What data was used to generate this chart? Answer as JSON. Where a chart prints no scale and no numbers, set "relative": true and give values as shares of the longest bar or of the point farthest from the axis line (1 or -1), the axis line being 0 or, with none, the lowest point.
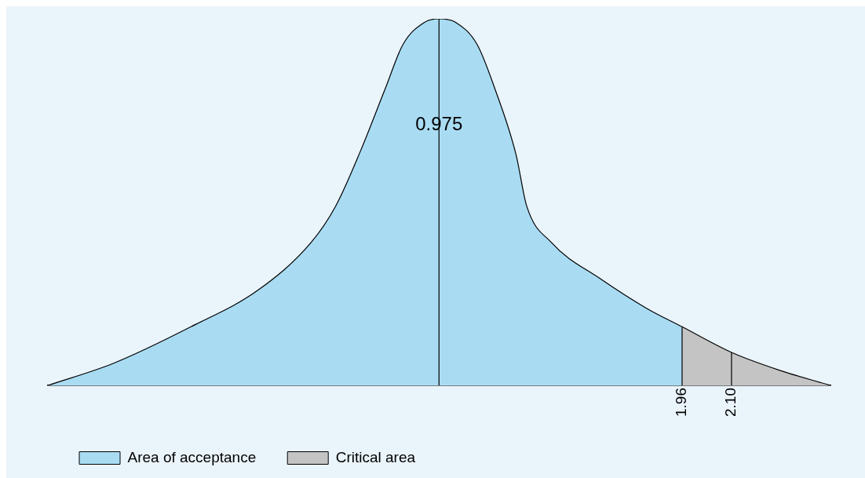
{
  "chart_data": {
    "type": "area",
    "relative": true,
    "xlim": [
      0.165,
      2.38
    ],
    "xticks": [
      1.96,
      {
        "value": 2.1,
        "label": "2.10"
      }
    ],
    "series": [
      {
        "name": "Area of acceptance",
        "color": "#a9dcf3",
        "x": [
          0.165,
          0.35,
          0.57,
          0.76,
          0.91,
          0.98,
          1.05,
          1.12,
          1.17,
          1.23,
          1.272,
          1.32,
          1.38,
          1.43,
          1.49,
          1.52,
          1.59,
          1.73,
          1.86,
          1.96
        ],
        "values": [
          0,
          0.06,
          0.16,
          0.26,
          0.39,
          0.49,
          0.64,
          0.81,
          0.93,
          0.99,
          1,
          0.99,
          0.93,
          0.81,
          0.63,
          0.49,
          0.39,
          0.29,
          0.21,
          0.16
        ]
      },
      {
        "name": "Critical area",
        "color": "#c4c4c4",
        "x": [
          1.96,
          2.1,
          2.24,
          2.38
        ],
        "values": [
          0.16,
          0.09,
          0.04,
          0
        ]
      }
    ],
    "annotations": [
      "0.975"
    ],
    "ref_lines": [
      {
        "axis": "x",
        "value": 1.272
      },
      {
        "axis": "x",
        "value": 1.96
      },
      {
        "axis": "x",
        "value": 2.1
      }
    ],
    "grid": false,
    "legend": "bottom"
  }
}
